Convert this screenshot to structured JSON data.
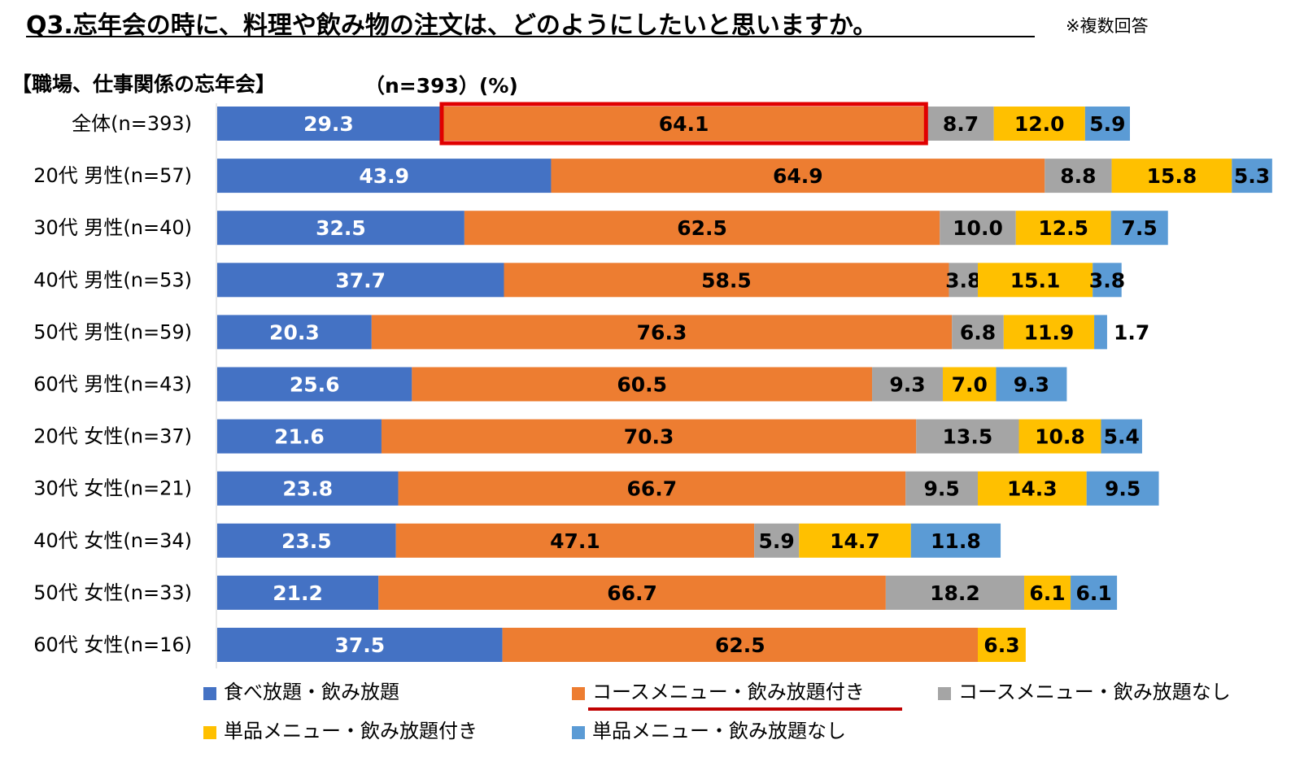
{
  "title": "Q3.忘年会の時に、料理や飲み物の注文は、どのようにしたいと思いますか。",
  "note": "※複数回答",
  "subtitle": "【職場、仕事関係の忘年会】",
  "sample": "（n=393）(%)",
  "chart_data": {
    "type": "bar",
    "orientation": "horizontal",
    "stacked": true,
    "categories": [
      "全体(n=393)",
      "20代 男性(n=57)",
      "30代 男性(n=40)",
      "40代 男性(n=53)",
      "50代 男性(n=59)",
      "60代 男性(n=43)",
      "20代 女性(n=37)",
      "30代 女性(n=21)",
      "40代 女性(n=34)",
      "50代 女性(n=33)",
      "60代 女性(n=16)"
    ],
    "series": [
      {
        "name": "食べ放題・飲み放題",
        "color": "#4472C4",
        "label_color": "#ffffff",
        "values": [
          29.3,
          43.9,
          32.5,
          37.7,
          20.3,
          25.6,
          21.6,
          23.8,
          23.5,
          21.2,
          37.5
        ]
      },
      {
        "name": "コースメニュー・飲み放題付き",
        "color": "#ED7D31",
        "label_color": "#000000",
        "values": [
          64.1,
          64.9,
          62.5,
          58.5,
          76.3,
          60.5,
          70.3,
          66.7,
          47.1,
          66.7,
          62.5
        ]
      },
      {
        "name": "コースメニュー・飲み放題なし",
        "color": "#A5A5A5",
        "label_color": "#000000",
        "values": [
          8.7,
          8.8,
          10.0,
          3.8,
          6.8,
          9.3,
          13.5,
          9.5,
          5.9,
          18.2,
          null
        ]
      },
      {
        "name": "単品メニュー・飲み放題付き",
        "color": "#FFC000",
        "label_color": "#000000",
        "values": [
          12.0,
          15.8,
          12.5,
          15.1,
          11.9,
          7.0,
          10.8,
          14.3,
          14.7,
          6.1,
          6.3
        ]
      },
      {
        "name": "単品メニュー・飲み放題なし",
        "color": "#5B9BD5",
        "label_color": "#000000",
        "values": [
          5.9,
          5.3,
          7.5,
          3.8,
          1.7,
          9.3,
          5.4,
          9.5,
          11.8,
          6.1,
          null
        ]
      }
    ],
    "value_labels": [
      [
        "29.3",
        "43.9",
        "32.5",
        "37.7",
        "20.3",
        "25.6",
        "21.6",
        "23.8",
        "23.5",
        "21.2",
        "37.5"
      ],
      [
        "64.1",
        "64.9",
        "62.5",
        "58.5",
        "76.3",
        "60.5",
        "70.3",
        "66.7",
        "47.1",
        "66.7",
        "62.5"
      ],
      [
        "8.7",
        "8.8",
        "10.0",
        "3.8",
        "6.8",
        "9.3",
        "13.5",
        "9.5",
        "5.9",
        "18.2",
        null
      ],
      [
        "12.0",
        "15.8",
        "12.5",
        "15.1",
        "11.9",
        "7.0",
        "10.8",
        "14.3",
        "14.7",
        "6.1",
        "6.3"
      ],
      [
        "5.9",
        "5.3",
        "7.5",
        "3.8",
        "1.7",
        "9.3",
        "5.4",
        "9.5",
        "11.8",
        "6.1",
        null
      ]
    ],
    "highlight": {
      "category": "全体(n=393)",
      "series": "コースメニュー・飲み放題付き",
      "color": "#E00000"
    },
    "legend_highlight": {
      "series": "コースメニュー・飲み放題付き",
      "color": "#C00000"
    },
    "legend_position": "bottom",
    "unit": "%"
  }
}
